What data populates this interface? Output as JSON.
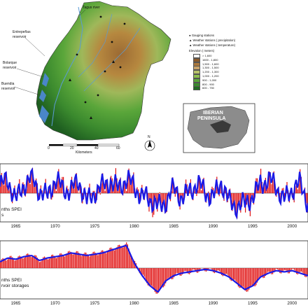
{
  "map": {
    "place_labels": [
      {
        "key": "tagus_river",
        "text": "Tagus river"
      },
      {
        "key": "entrepenas_a",
        "text": "Entrepeñas"
      },
      {
        "key": "entrepenas_b",
        "text": "reservoir"
      },
      {
        "key": "bolarque_a",
        "text": "Bolarque"
      },
      {
        "key": "bolarque_b",
        "text": "reservoir"
      },
      {
        "key": "buendia_a",
        "text": "Buendia"
      },
      {
        "key": "buendia_b",
        "text": "reservoir"
      }
    ],
    "legend": {
      "station_items": [
        {
          "symbol": "●",
          "text": "Gauging stations"
        },
        {
          "symbol": "▲",
          "text": "Weather stations ( precipitation)"
        },
        {
          "symbol": "▲",
          "text": "Weather stations ( temperature)"
        }
      ],
      "elevation_title": "Elevation ( meters)",
      "elevation_classes": [
        {
          "label": "> 1,600",
          "color": "#ffffff"
        },
        {
          "label": "1600 - 1,800",
          "color": "#8a5a2b"
        },
        {
          "label": "1,500 - 1,600",
          "color": "#a9773d"
        },
        {
          "label": "1,300 - 1,500",
          "color": "#c9a36a"
        },
        {
          "label": "1,200 - 1,300",
          "color": "#b8c26a"
        },
        {
          "label": "1,000 - 1,200",
          "color": "#8fbf4d"
        },
        {
          "label": "900 - 1,000",
          "color": "#5aa63a"
        },
        {
          "label": "800 - 900",
          "color": "#3b8a2e"
        },
        {
          "label": "600 - 750",
          "color": "#216b23"
        }
      ]
    },
    "scale_bar": {
      "ticks": [
        "0",
        "20",
        "40",
        "60"
      ],
      "unit": "Kilometers"
    },
    "north_arrow": "N",
    "inset": {
      "line1": "IBERIAN",
      "line2": "PENINSULA",
      "land_color": "#8c8c8c",
      "sea_color": "#ffffff",
      "basin_color": "#3a3a3a"
    }
  },
  "chart_data": [
    {
      "type": "line",
      "x_start_year": 1963,
      "x_end_year": 2002,
      "xticks": [
        "1965",
        "1970",
        "1975",
        "1980",
        "1985",
        "1990",
        "1995",
        "2000"
      ],
      "series": [
        {
          "label_role": "bars",
          "color": "#e01010"
        },
        {
          "label_role": "line",
          "color": "#1a1ae6"
        }
      ],
      "label_fragments": [
        "nths SPEI",
        "s"
      ],
      "yearly_pattern": [
        0.3,
        0.5,
        -0.2,
        0.4,
        0.6,
        0.2,
        -0.1,
        0.5,
        0.3,
        0.2,
        0.4,
        -0.3,
        0.1,
        0.2,
        0.6,
        0.3,
        0.5,
        0.4,
        -0.1,
        -0.4,
        -0.6,
        -0.3,
        0.1,
        -0.2,
        0.2,
        0.3,
        0.1,
        -0.1,
        0.4,
        -0.4,
        -0.5,
        -0.6,
        -0.2,
        0.6,
        0.5,
        0.3,
        -0.2,
        0.1,
        0.4,
        -0.3
      ]
    },
    {
      "type": "line",
      "x_start_year": 1963,
      "x_end_year": 2002,
      "xticks": [
        "1965",
        "1970",
        "1975",
        "1980",
        "1985",
        "1990",
        "1995",
        "2000"
      ],
      "series": [
        {
          "label_role": "bars",
          "color": "#e01010"
        },
        {
          "label_role": "line",
          "color": "#1a1ae6"
        }
      ],
      "label_fragments": [
        "nths SPEI",
        "rvoir storages"
      ],
      "yearly_pattern": [
        0.25,
        0.4,
        0.35,
        0.45,
        0.5,
        0.3,
        0.4,
        0.45,
        0.5,
        0.6,
        0.55,
        0.5,
        0.55,
        0.6,
        0.7,
        0.8,
        0.9,
        0.2,
        -0.3,
        -0.7,
        -0.95,
        -0.5,
        -0.3,
        -0.2,
        -0.15,
        -0.1,
        -0.05,
        -0.1,
        -0.2,
        -0.35,
        -0.6,
        -0.85,
        -0.7,
        -0.35,
        -0.2,
        -0.1,
        -0.15,
        -0.1,
        -0.2,
        -0.3
      ]
    }
  ]
}
